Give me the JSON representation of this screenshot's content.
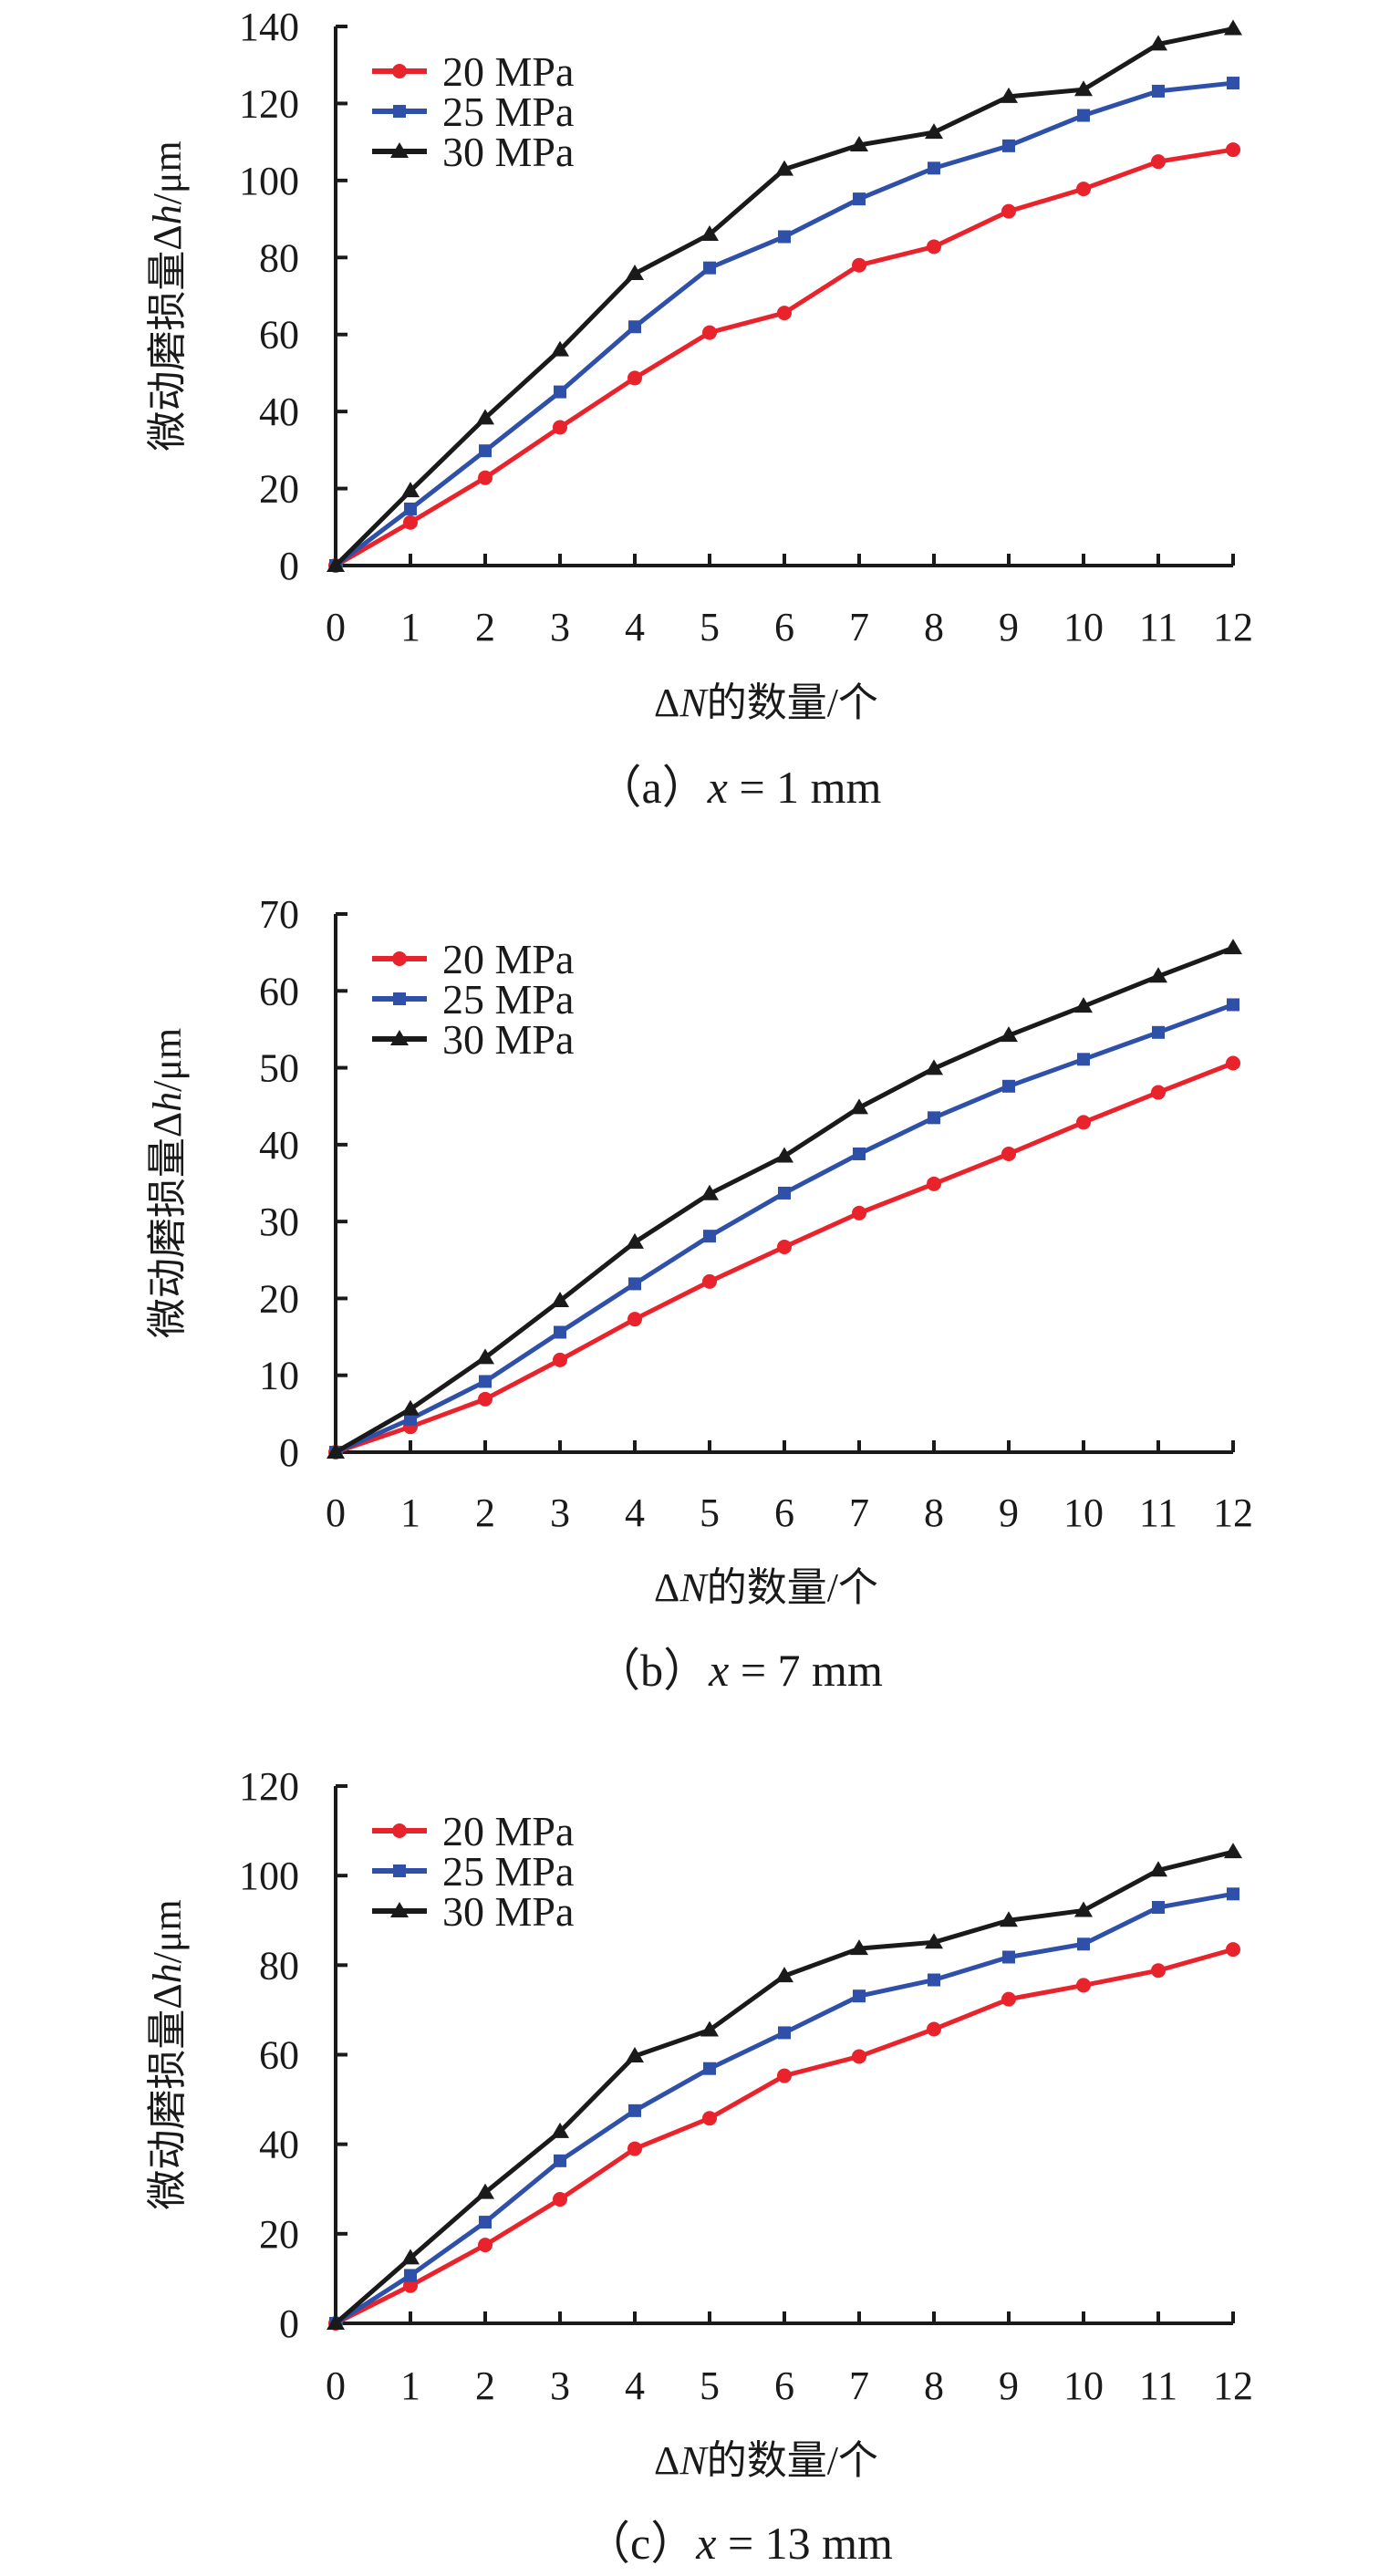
{
  "figure": {
    "colors": {
      "s20": "#e8232b",
      "s25": "#2f50a8",
      "s30": "#1a1a1a",
      "axis": "#1a1a1a"
    }
  },
  "chart_data": [
    {
      "type": "line",
      "id": "a",
      "caption": "（a）x = 1 mm",
      "caption_parts": [
        "（a）",
        "x",
        " = 1 mm"
      ],
      "xlabel": "ΔN的数量/个",
      "xlabel_parts": [
        "Δ",
        "N",
        "的数量/个"
      ],
      "ylabel": "微动磨损量Δh/μm",
      "ylabel_parts": [
        "微动磨损量Δ",
        "h",
        "/μm"
      ],
      "x": [
        0,
        1,
        2,
        3,
        4,
        5,
        6,
        7,
        8,
        9,
        10,
        11,
        12
      ],
      "x_ticks": [
        "0",
        "1",
        "2",
        "3",
        "4",
        "5",
        "6",
        "7",
        "8",
        "9",
        "10",
        "11",
        "12"
      ],
      "xlim": [
        0,
        12
      ],
      "ylim": [
        0,
        140
      ],
      "y_ticks": [
        0,
        20,
        40,
        60,
        80,
        100,
        120,
        140
      ],
      "grid": false,
      "legend_position": "top-left",
      "series": [
        {
          "name": "20 MPa",
          "marker": "circle",
          "color": "#e8232b",
          "values": [
            0,
            11.2,
            22.8,
            35.9,
            48.7,
            60.5,
            65.6,
            78.0,
            82.8,
            92.0,
            97.8,
            104.9,
            108.0
          ]
        },
        {
          "name": "25 MPa",
          "marker": "square",
          "color": "#2f50a8",
          "values": [
            0,
            14.7,
            29.8,
            45.1,
            62.0,
            77.3,
            85.4,
            95.2,
            103.2,
            109.0,
            116.9,
            123.2,
            125.3
          ]
        },
        {
          "name": "30 MPa",
          "marker": "triangle",
          "color": "#1a1a1a",
          "values": [
            0,
            19.4,
            38.3,
            56.0,
            75.8,
            86.0,
            102.9,
            109.2,
            112.5,
            121.8,
            123.6,
            135.4,
            139.4
          ]
        }
      ]
    },
    {
      "type": "line",
      "id": "b",
      "caption": "（b）x = 7 mm",
      "caption_parts": [
        "（b）",
        "x",
        " = 7 mm"
      ],
      "xlabel": "ΔN的数量/个",
      "xlabel_parts": [
        "Δ",
        "N",
        "的数量/个"
      ],
      "ylabel": "微动磨损量Δh/μm",
      "ylabel_parts": [
        "微动磨损量Δ",
        "h",
        "/μm"
      ],
      "x": [
        0,
        1,
        2,
        3,
        4,
        5,
        6,
        7,
        8,
        9,
        10,
        11,
        12
      ],
      "x_ticks": [
        "0",
        "1",
        "2",
        "3",
        "4",
        "5",
        "6",
        "7",
        "8",
        "9",
        "10",
        "11",
        "12"
      ],
      "xlim": [
        0,
        12
      ],
      "ylim": [
        0,
        70
      ],
      "y_ticks": [
        0,
        10,
        20,
        30,
        40,
        50,
        60,
        70
      ],
      "grid": false,
      "legend_position": "top-left",
      "series": [
        {
          "name": "20 MPa",
          "marker": "circle",
          "color": "#e8232b",
          "values": [
            0,
            3.3,
            6.9,
            12.0,
            17.3,
            22.2,
            26.7,
            31.1,
            34.9,
            38.8,
            42.9,
            46.8,
            50.6
          ]
        },
        {
          "name": "25 MPa",
          "marker": "square",
          "color": "#2f50a8",
          "values": [
            0,
            4.3,
            9.2,
            15.6,
            21.9,
            28.1,
            33.7,
            38.8,
            43.5,
            47.6,
            51.1,
            54.6,
            58.2
          ]
        },
        {
          "name": "30 MPa",
          "marker": "triangle",
          "color": "#1a1a1a",
          "values": [
            0,
            5.6,
            12.3,
            19.7,
            27.3,
            33.6,
            38.5,
            44.8,
            49.9,
            54.2,
            58.0,
            61.9,
            65.6
          ]
        }
      ]
    },
    {
      "type": "line",
      "id": "c",
      "caption": "（c）x = 13 mm",
      "caption_parts": [
        "（c）",
        "x",
        " = 13 mm"
      ],
      "xlabel": "ΔN的数量/个",
      "xlabel_parts": [
        "Δ",
        "N",
        "的数量/个"
      ],
      "ylabel": "微动磨损量Δh/μm",
      "ylabel_parts": [
        "微动磨损量Δ",
        "h",
        "/μm"
      ],
      "x": [
        0,
        1,
        2,
        3,
        4,
        5,
        6,
        7,
        8,
        9,
        10,
        11,
        12
      ],
      "x_ticks": [
        "0",
        "1",
        "2",
        "3",
        "4",
        "5",
        "6",
        "7",
        "8",
        "9",
        "10",
        "11",
        "12"
      ],
      "xlim": [
        0,
        12
      ],
      "ylim": [
        0,
        120
      ],
      "y_ticks": [
        0,
        20,
        40,
        60,
        80,
        100,
        120
      ],
      "grid": false,
      "legend_position": "top-left",
      "series": [
        {
          "name": "20 MPa",
          "marker": "circle",
          "color": "#e8232b",
          "values": [
            0,
            8.4,
            17.5,
            27.7,
            39.0,
            45.8,
            55.3,
            59.6,
            65.7,
            72.4,
            75.5,
            78.8,
            83.5
          ]
        },
        {
          "name": "25 MPa",
          "marker": "square",
          "color": "#2f50a8",
          "values": [
            0,
            10.7,
            22.6,
            36.3,
            47.5,
            56.9,
            64.9,
            73.1,
            76.7,
            81.8,
            84.7,
            92.9,
            95.9
          ]
        },
        {
          "name": "30 MPa",
          "marker": "triangle",
          "color": "#1a1a1a",
          "values": [
            0,
            14.6,
            29.2,
            42.8,
            59.7,
            65.5,
            77.6,
            83.7,
            85.1,
            90.0,
            92.2,
            101.2,
            105.3
          ]
        }
      ]
    }
  ]
}
